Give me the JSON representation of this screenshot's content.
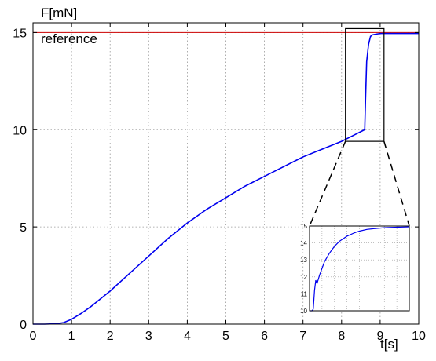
{
  "chart_data": [
    {
      "type": "line",
      "ylabel": "F[mN]",
      "xlabel": "t[s]",
      "xlim": [
        0,
        10
      ],
      "ylim": [
        0,
        15.5
      ],
      "x_ticks": [
        "0",
        "1",
        "2",
        "3",
        "4",
        "5",
        "6",
        "7",
        "8",
        "9",
        "10"
      ],
      "y_ticks": [
        "0",
        "5",
        "10",
        "15"
      ],
      "grid": true,
      "reference_value": 15,
      "series": [
        {
          "name": "reference",
          "color": "#cc0000",
          "x": [
            0,
            10
          ],
          "y": [
            15,
            15
          ]
        },
        {
          "color": "#0000ee",
          "x": [
            0,
            0.3,
            0.6,
            0.8,
            1.0,
            1.25,
            1.5,
            2.0,
            2.5,
            3.0,
            3.5,
            4.0,
            4.5,
            5.0,
            5.5,
            6.0,
            6.5,
            7.0,
            7.5,
            8.0,
            8.3,
            8.55,
            8.6,
            8.62,
            8.65,
            8.7,
            8.75,
            8.8,
            8.9,
            9.0,
            9.2,
            9.5,
            10.0
          ],
          "y": [
            0,
            0,
            0.02,
            0.08,
            0.25,
            0.55,
            0.9,
            1.7,
            2.6,
            3.5,
            4.4,
            5.2,
            5.9,
            6.5,
            7.1,
            7.6,
            8.1,
            8.6,
            9.0,
            9.4,
            9.7,
            9.95,
            10.0,
            11.5,
            13.5,
            14.4,
            14.8,
            14.88,
            14.92,
            14.95,
            14.95,
            14.95,
            14.95
          ]
        }
      ],
      "zoom_box": {
        "x": [
          8.1,
          9.1
        ],
        "y": [
          9.4,
          15.2
        ]
      }
    },
    {
      "type": "line",
      "inset": true,
      "xlim": [
        8.6,
        9.0
      ],
      "ylim": [
        10,
        15
      ],
      "y_ticks": [
        "10",
        "11",
        "12",
        "13",
        "14",
        "15"
      ],
      "grid": true,
      "series": [
        {
          "color": "#cc0000",
          "x": [
            8.6,
            9.0
          ],
          "y": [
            15,
            15
          ]
        },
        {
          "color": "#0000ee",
          "x": [
            8.6,
            8.61,
            8.615,
            8.62,
            8.625,
            8.63,
            8.64,
            8.65,
            8.66,
            8.68,
            8.7,
            8.72,
            8.75,
            8.78,
            8.8,
            8.83,
            8.86,
            8.9,
            8.95,
            9.0
          ],
          "y": [
            10,
            10,
            10.1,
            11.2,
            11.8,
            11.6,
            12.1,
            12.5,
            12.9,
            13.4,
            13.8,
            14.1,
            14.4,
            14.6,
            14.7,
            14.8,
            14.85,
            14.9,
            14.93,
            14.95
          ]
        }
      ]
    }
  ]
}
